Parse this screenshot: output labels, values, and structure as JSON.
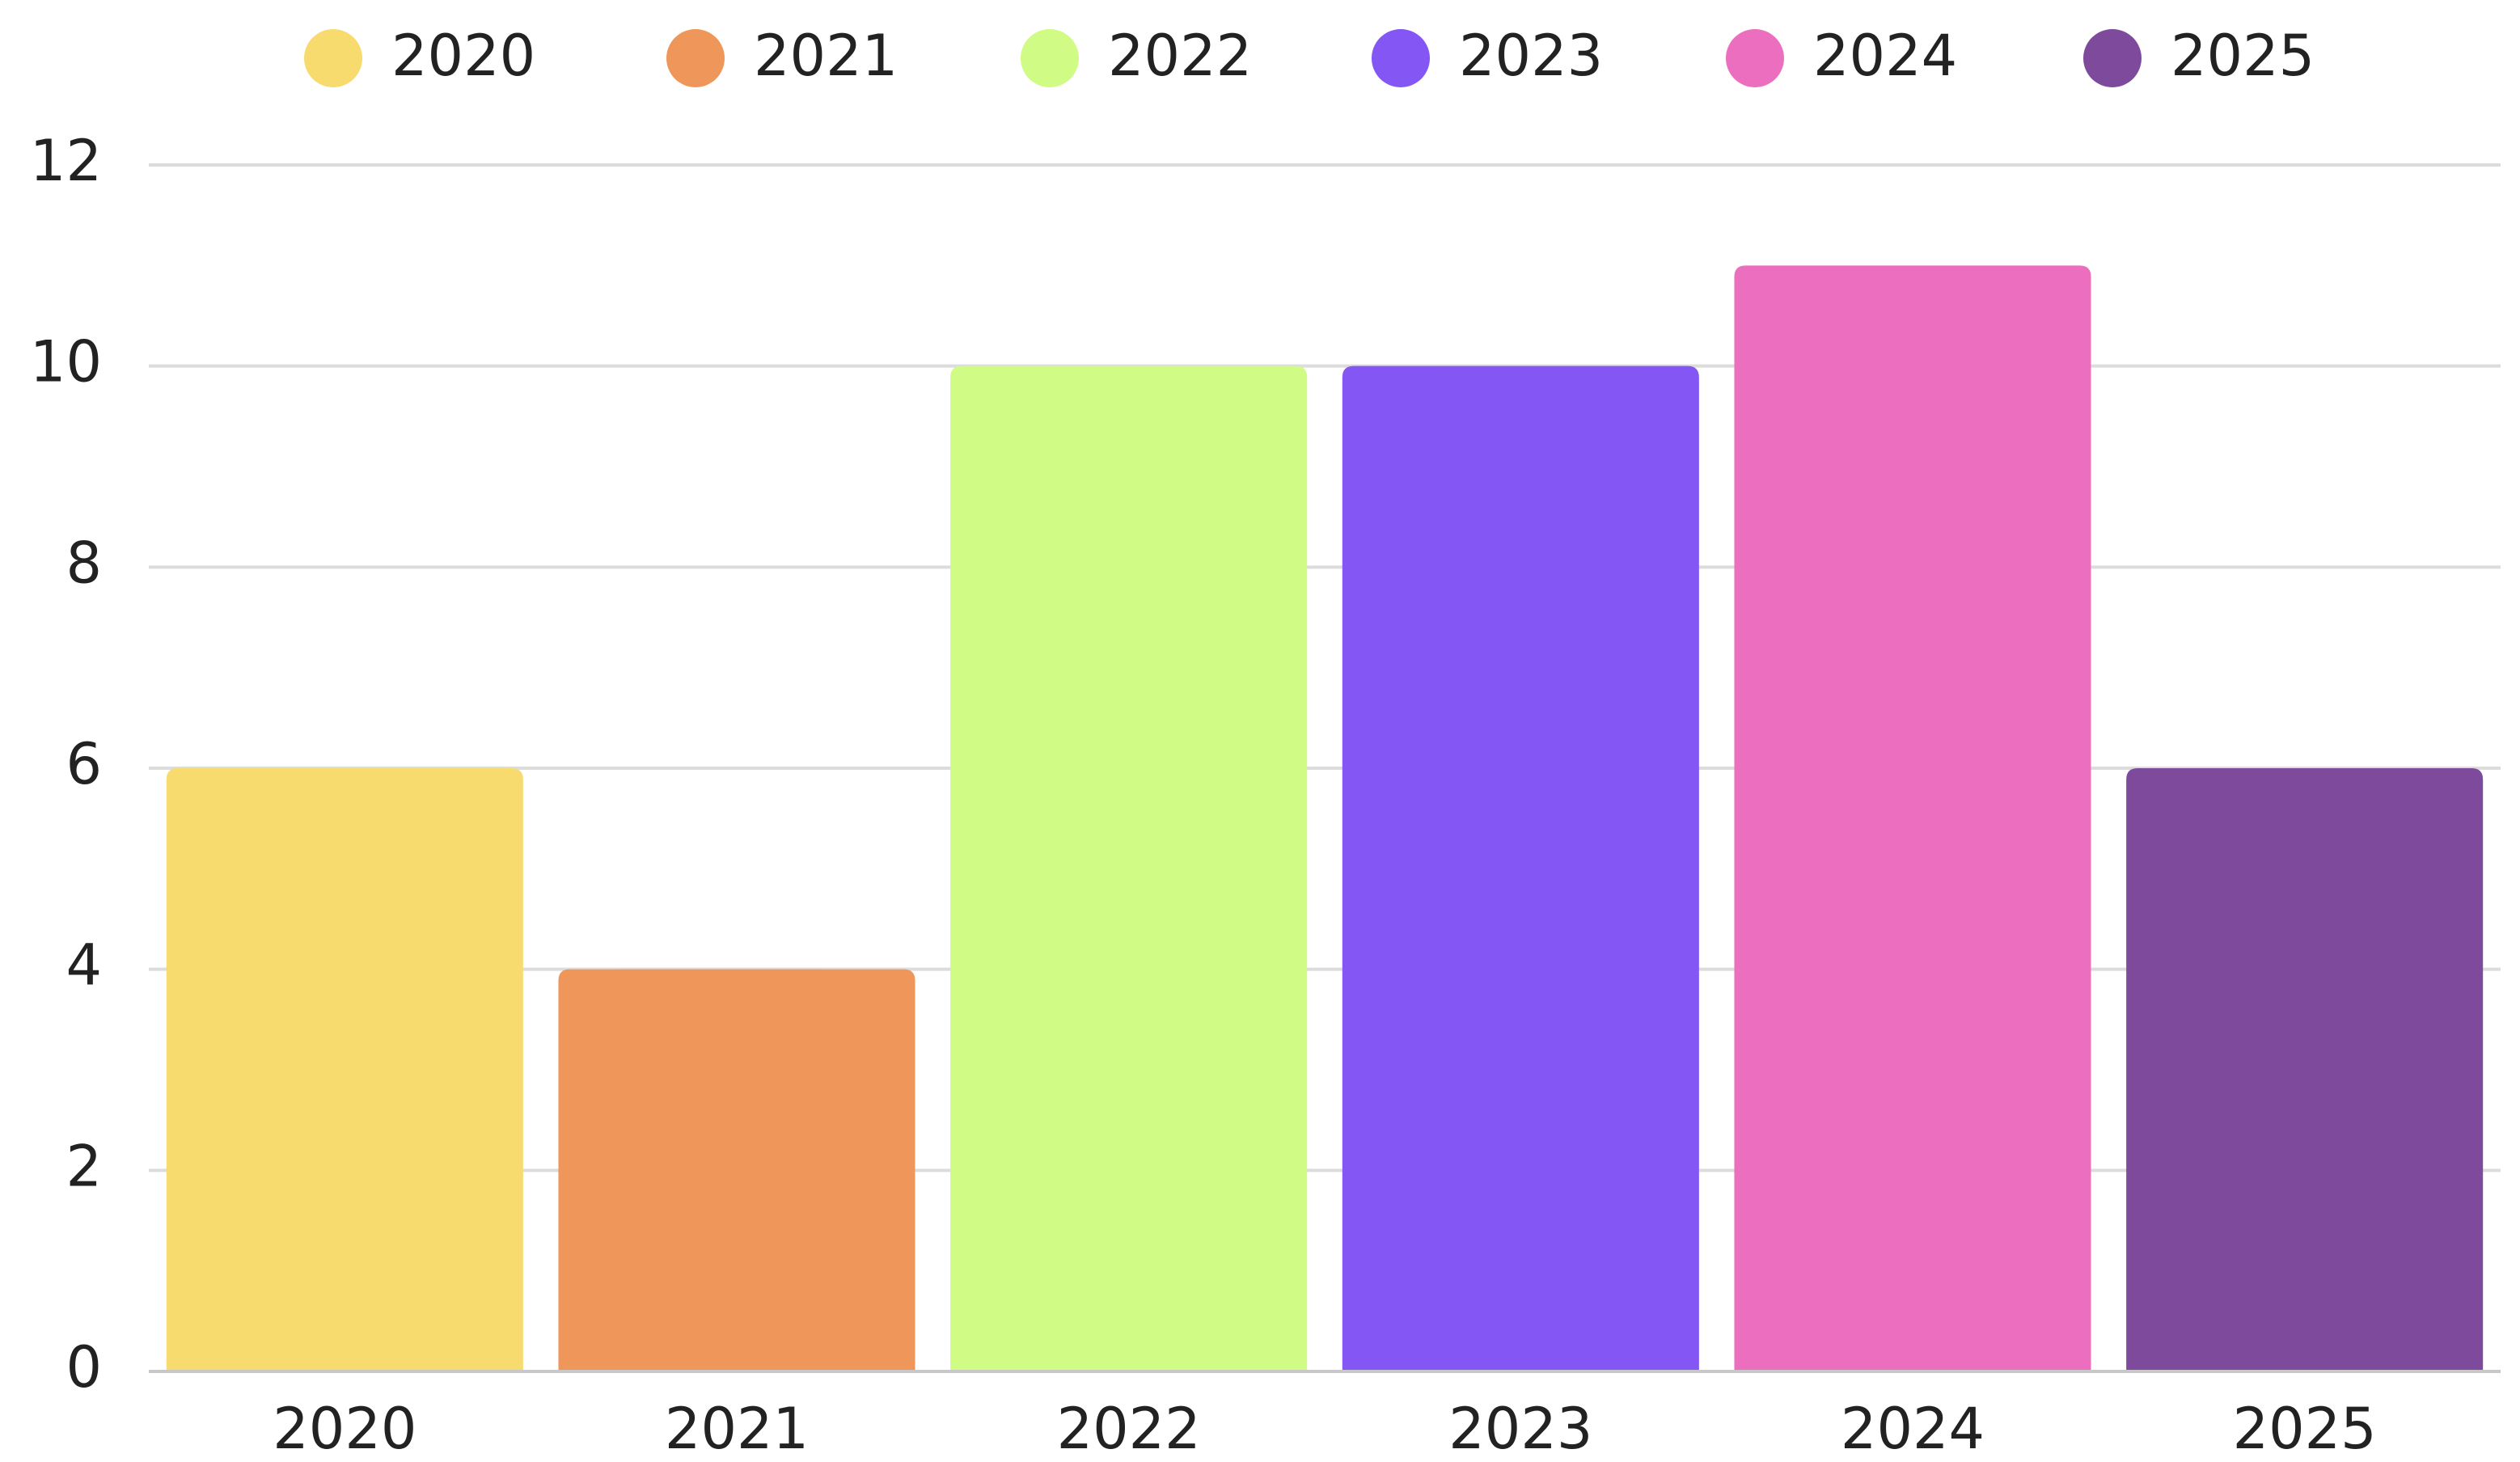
{
  "chart_data": {
    "type": "bar",
    "categories": [
      "2020",
      "2021",
      "2022",
      "2023",
      "2024",
      "2025"
    ],
    "values": [
      6,
      4,
      10,
      10,
      11,
      6
    ],
    "colors": [
      "#f7db6f",
      "#ef965b",
      "#d0fb84",
      "#8456f3",
      "#ec6ebf",
      "#7e4a9c"
    ],
    "ylim": [
      0,
      12
    ],
    "yticks": [
      0,
      2,
      4,
      6,
      8,
      10,
      12
    ],
    "grid": true,
    "legend": "top"
  }
}
